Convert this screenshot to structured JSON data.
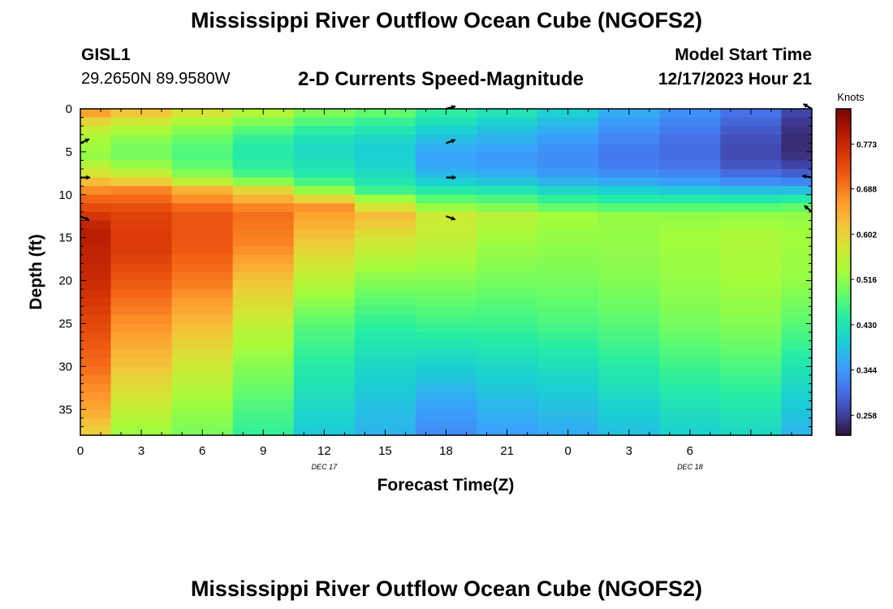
{
  "header": {
    "title": "Mississippi River Outflow Ocean Cube (NGOFS2)",
    "station_id": "GISL1",
    "station_coords": "29.2650N  89.9580W",
    "plot_subtitle": "2-D Currents Speed-Magnitude",
    "model_start_label": "Model Start Time",
    "model_start_value": "12/17/2023 Hour 21"
  },
  "footer": {
    "title": "Mississippi River Outflow Ocean Cube (NGOFS2)"
  },
  "chart_data": {
    "type": "heatmap",
    "title": "2-D Currents Speed-Magnitude",
    "xlabel": "Forecast Time(Z)",
    "ylabel": "Depth (ft)",
    "x_tick_labels": [
      "0",
      "3",
      "6",
      "9",
      "12",
      "15",
      "18",
      "21",
      "0",
      "3",
      "6"
    ],
    "x_date_labels": [
      {
        "label": "DEC 17",
        "at_hour": 12
      },
      {
        "label": "DEC 18",
        "at_hour": 30
      }
    ],
    "xlim_hours": [
      0,
      36
    ],
    "y_tick_labels": [
      "0",
      "5",
      "10",
      "15",
      "20",
      "25",
      "30",
      "35"
    ],
    "y_ticks": [
      0,
      5,
      10,
      15,
      20,
      25,
      30,
      35
    ],
    "ylim_ft": [
      0,
      38
    ],
    "y_inverted": true,
    "colorbar": {
      "title": "Knots",
      "tick_labels": [
        "0.773",
        "0.688",
        "0.602",
        "0.516",
        "0.430",
        "0.344",
        "0.258"
      ],
      "ticks": [
        0.773,
        0.688,
        0.602,
        0.516,
        0.43,
        0.344,
        0.258
      ],
      "vmin": 0.22,
      "vmax": 0.84,
      "colors": [
        "#30123b",
        "#4145ab",
        "#4675ed",
        "#39a2fc",
        "#1bcfd4",
        "#24eca6",
        "#61fc6c",
        "#a4fc3b",
        "#d1e834",
        "#f3c63a",
        "#fe9b2d",
        "#f36315",
        "#d93806",
        "#b11901",
        "#7a0402"
      ]
    },
    "columns": [
      {
        "hour_start": 0,
        "hour_end": 1.5,
        "profile": [
          [
            0,
            0.69
          ],
          [
            1,
            0.62
          ],
          [
            3,
            0.54
          ],
          [
            5.5,
            0.52
          ],
          [
            7,
            0.56
          ],
          [
            8,
            0.6
          ],
          [
            9,
            0.66
          ],
          [
            11,
            0.72
          ],
          [
            14,
            0.79
          ],
          [
            20,
            0.77
          ],
          [
            30,
            0.7
          ],
          [
            35,
            0.65
          ],
          [
            38,
            0.6
          ]
        ]
      },
      {
        "hour_start": 1.5,
        "hour_end": 4.5,
        "profile": [
          [
            0,
            0.64
          ],
          [
            2,
            0.55
          ],
          [
            4,
            0.5
          ],
          [
            6,
            0.5
          ],
          [
            8,
            0.58
          ],
          [
            9.5,
            0.68
          ],
          [
            12,
            0.74
          ],
          [
            16,
            0.75
          ],
          [
            20,
            0.72
          ],
          [
            25,
            0.67
          ],
          [
            30,
            0.62
          ],
          [
            35,
            0.56
          ],
          [
            38,
            0.52
          ]
        ]
      },
      {
        "hour_start": 4.5,
        "hour_end": 7.5,
        "profile": [
          [
            0,
            0.6
          ],
          [
            2,
            0.52
          ],
          [
            4,
            0.48
          ],
          [
            6,
            0.47
          ],
          [
            8,
            0.52
          ],
          [
            9.5,
            0.64
          ],
          [
            12,
            0.72
          ],
          [
            16,
            0.72
          ],
          [
            20,
            0.69
          ],
          [
            25,
            0.63
          ],
          [
            30,
            0.57
          ],
          [
            35,
            0.52
          ],
          [
            38,
            0.5
          ]
        ]
      },
      {
        "hour_start": 7.5,
        "hour_end": 10.5,
        "profile": [
          [
            0,
            0.56
          ],
          [
            2,
            0.49
          ],
          [
            4,
            0.44
          ],
          [
            6,
            0.44
          ],
          [
            8,
            0.47
          ],
          [
            9.5,
            0.6
          ],
          [
            12,
            0.7
          ],
          [
            16,
            0.68
          ],
          [
            20,
            0.62
          ],
          [
            25,
            0.56
          ],
          [
            30,
            0.51
          ],
          [
            35,
            0.47
          ],
          [
            38,
            0.45
          ]
        ]
      },
      {
        "hour_start": 10.5,
        "hour_end": 13.5,
        "profile": [
          [
            0,
            0.52
          ],
          [
            2,
            0.46
          ],
          [
            4,
            0.41
          ],
          [
            6,
            0.42
          ],
          [
            8,
            0.44
          ],
          [
            9.5,
            0.52
          ],
          [
            11.5,
            0.67
          ],
          [
            15,
            0.62
          ],
          [
            20,
            0.55
          ],
          [
            25,
            0.48
          ],
          [
            30,
            0.44
          ],
          [
            35,
            0.41
          ],
          [
            38,
            0.39
          ]
        ]
      },
      {
        "hour_start": 13.5,
        "hour_end": 16.5,
        "profile": [
          [
            0,
            0.5
          ],
          [
            2,
            0.44
          ],
          [
            4,
            0.4
          ],
          [
            6,
            0.4
          ],
          [
            8,
            0.42
          ],
          [
            9.5,
            0.46
          ],
          [
            11,
            0.56
          ],
          [
            12.5,
            0.63
          ],
          [
            15,
            0.58
          ],
          [
            20,
            0.51
          ],
          [
            25,
            0.45
          ],
          [
            30,
            0.41
          ],
          [
            35,
            0.38
          ],
          [
            38,
            0.37
          ]
        ]
      },
      {
        "hour_start": 16.5,
        "hour_end": 19.5,
        "profile": [
          [
            0,
            0.46
          ],
          [
            2,
            0.41
          ],
          [
            4,
            0.37
          ],
          [
            6,
            0.35
          ],
          [
            8,
            0.38
          ],
          [
            9.5,
            0.44
          ],
          [
            11,
            0.5
          ],
          [
            12.5,
            0.57
          ],
          [
            15,
            0.56
          ],
          [
            20,
            0.51
          ],
          [
            25,
            0.46
          ],
          [
            30,
            0.4
          ],
          [
            35,
            0.35
          ],
          [
            38,
            0.33
          ]
        ]
      },
      {
        "hour_start": 19.5,
        "hour_end": 22.5,
        "profile": [
          [
            0,
            0.44
          ],
          [
            2,
            0.39
          ],
          [
            4,
            0.36
          ],
          [
            6,
            0.34
          ],
          [
            8,
            0.37
          ],
          [
            9.5,
            0.43
          ],
          [
            11,
            0.49
          ],
          [
            12.5,
            0.55
          ],
          [
            15,
            0.53
          ],
          [
            20,
            0.5
          ],
          [
            25,
            0.46
          ],
          [
            30,
            0.41
          ],
          [
            35,
            0.37
          ],
          [
            38,
            0.35
          ]
        ]
      },
      {
        "hour_start": 22.5,
        "hour_end": 25.5,
        "profile": [
          [
            0,
            0.41
          ],
          [
            2,
            0.37
          ],
          [
            4,
            0.34
          ],
          [
            6,
            0.33
          ],
          [
            8,
            0.35
          ],
          [
            9.5,
            0.41
          ],
          [
            11,
            0.47
          ],
          [
            12.5,
            0.53
          ],
          [
            15,
            0.52
          ],
          [
            20,
            0.5
          ],
          [
            25,
            0.47
          ],
          [
            30,
            0.42
          ],
          [
            35,
            0.38
          ],
          [
            38,
            0.36
          ]
        ]
      },
      {
        "hour_start": 25.5,
        "hour_end": 28.5,
        "profile": [
          [
            0,
            0.37
          ],
          [
            2,
            0.34
          ],
          [
            4,
            0.32
          ],
          [
            6,
            0.31
          ],
          [
            8,
            0.34
          ],
          [
            9.5,
            0.4
          ],
          [
            11,
            0.46
          ],
          [
            12.5,
            0.52
          ],
          [
            15,
            0.52
          ],
          [
            20,
            0.51
          ],
          [
            25,
            0.48
          ],
          [
            30,
            0.44
          ],
          [
            35,
            0.4
          ],
          [
            38,
            0.38
          ]
        ]
      },
      {
        "hour_start": 28.5,
        "hour_end": 31.5,
        "profile": [
          [
            0,
            0.34
          ],
          [
            2,
            0.32
          ],
          [
            4,
            0.3
          ],
          [
            6,
            0.3
          ],
          [
            8,
            0.33
          ],
          [
            9.5,
            0.39
          ],
          [
            11,
            0.46
          ],
          [
            12.5,
            0.52
          ],
          [
            15,
            0.53
          ],
          [
            20,
            0.52
          ],
          [
            25,
            0.5
          ],
          [
            30,
            0.46
          ],
          [
            35,
            0.42
          ],
          [
            38,
            0.4
          ]
        ]
      },
      {
        "hour_start": 31.5,
        "hour_end": 34.5,
        "profile": [
          [
            0,
            0.31
          ],
          [
            2,
            0.29
          ],
          [
            4,
            0.27
          ],
          [
            6,
            0.27
          ],
          [
            8,
            0.31
          ],
          [
            9.5,
            0.38
          ],
          [
            11,
            0.46
          ],
          [
            12.5,
            0.52
          ],
          [
            15,
            0.54
          ],
          [
            20,
            0.53
          ],
          [
            25,
            0.51
          ],
          [
            30,
            0.47
          ],
          [
            35,
            0.43
          ],
          [
            38,
            0.41
          ]
        ]
      },
      {
        "hour_start": 34.5,
        "hour_end": 36,
        "profile": [
          [
            0,
            0.27
          ],
          [
            2,
            0.25
          ],
          [
            4,
            0.24
          ],
          [
            6,
            0.25
          ],
          [
            8,
            0.3
          ],
          [
            9.5,
            0.38
          ],
          [
            11,
            0.47
          ],
          [
            12.5,
            0.52
          ],
          [
            15,
            0.53
          ],
          [
            20,
            0.52
          ],
          [
            25,
            0.48
          ],
          [
            30,
            0.43
          ],
          [
            35,
            0.39
          ],
          [
            38,
            0.37
          ]
        ]
      }
    ],
    "vectors": [
      {
        "hour": 0,
        "depth": 4,
        "dir_deg": -25
      },
      {
        "hour": 0,
        "depth": 8,
        "dir_deg": 0
      },
      {
        "hour": 0,
        "depth": 12.5,
        "dir_deg": 25
      },
      {
        "hour": 18,
        "depth": 0,
        "dir_deg": -15
      },
      {
        "hour": 18,
        "depth": 4,
        "dir_deg": -20
      },
      {
        "hour": 18,
        "depth": 8,
        "dir_deg": 0
      },
      {
        "hour": 18,
        "depth": 12.5,
        "dir_deg": 20
      },
      {
        "hour": 36,
        "depth": 0,
        "dir_deg": 210
      },
      {
        "hour": 36,
        "depth": 8,
        "dir_deg": 190
      },
      {
        "hour": 36,
        "depth": 12,
        "dir_deg": 220
      }
    ]
  }
}
